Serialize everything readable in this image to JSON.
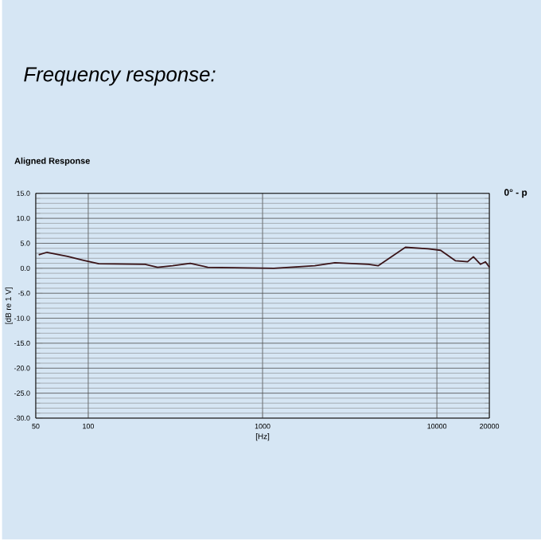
{
  "chart_data": {
    "type": "line",
    "title": "Frequency response:",
    "subtitle": "Aligned Response",
    "xlabel": "[Hz]",
    "ylabel": "[dB re 1 V]",
    "log": "x",
    "grid": true,
    "xlim": [
      50,
      20000
    ],
    "ylim": [
      -30,
      15
    ],
    "xticks": [
      50,
      100,
      1000,
      10000,
      20000
    ],
    "yticks": [
      {
        "value": 15,
        "label": "15.0"
      },
      {
        "value": 10,
        "label": "10.0"
      },
      {
        "value": 5,
        "label": "5.0"
      },
      {
        "value": 0,
        "label": "0.0"
      },
      {
        "value": -5,
        "label": "-5.0"
      },
      {
        "value": -10,
        "label": "-10.0"
      },
      {
        "value": -15,
        "label": "-15.0"
      },
      {
        "value": -20,
        "label": "-20.0"
      },
      {
        "value": -25,
        "label": "-25.0"
      },
      {
        "value": -30,
        "label": "-30.0"
      }
    ],
    "series": [
      {
        "name": "0° - p",
        "color": "#3a1418",
        "x": [
          52,
          58,
          76,
          94,
          115,
          212,
          250,
          305,
          385,
          485,
          1160,
          1995,
          2600,
          4060,
          4600,
          6600,
          8900,
          10500,
          12800,
          15000,
          16200,
          17800,
          19000,
          20000
        ],
        "values": [
          2.7,
          3.2,
          2.4,
          1.6,
          0.9,
          0.8,
          0.2,
          0.5,
          1.0,
          0.2,
          0.0,
          0.5,
          1.1,
          0.8,
          0.5,
          4.2,
          3.9,
          3.6,
          1.5,
          1.3,
          2.3,
          0.8,
          1.3,
          0.2
        ]
      }
    ]
  }
}
